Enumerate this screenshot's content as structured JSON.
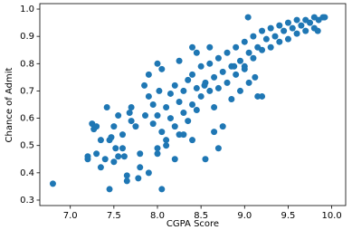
{
  "chart_data": {
    "type": "scatter",
    "xlabel": "CGPA Score",
    "ylabel": "Chance of Admit",
    "color": "#1f77b4",
    "xlim": [
      6.65,
      10.16
    ],
    "ylim": [
      0.28,
      1.02
    ],
    "xticks": [
      {
        "value": 7,
        "label": "7.0"
      },
      7.5,
      {
        "value": 8,
        "label": "8.0"
      },
      8.5,
      {
        "value": 9,
        "label": "9.0"
      },
      9.5,
      {
        "value": 10,
        "label": "10.0"
      }
    ],
    "yticks": [
      0.3,
      0.4,
      0.5,
      0.6,
      0.7,
      0.8,
      0.9,
      {
        "value": 1,
        "label": "1.0"
      }
    ],
    "x": [
      6.8,
      7.45,
      8.05,
      7.2,
      7.25,
      7.27,
      7.3,
      7.35,
      7.35,
      7.4,
      7.42,
      7.45,
      7.47,
      7.5,
      7.5,
      7.52,
      7.55,
      7.55,
      7.6,
      7.62,
      7.65,
      7.65,
      7.68,
      7.7,
      7.7,
      7.75,
      7.8,
      7.8,
      7.85,
      7.9,
      7.9,
      7.95,
      7.95,
      8.0,
      8.0,
      8.02,
      8.05,
      8.05,
      8.1,
      8.1,
      8.15,
      8.15,
      8.2,
      8.2,
      8.25,
      8.25,
      8.3,
      8.3,
      8.35,
      8.35,
      8.4,
      8.4,
      8.45,
      8.45,
      8.5,
      8.5,
      8.55,
      8.55,
      8.6,
      8.6,
      8.65,
      8.65,
      8.7,
      8.7,
      8.75,
      8.75,
      8.8,
      8.8,
      8.85,
      8.85,
      8.9,
      8.9,
      8.95,
      8.95,
      9.0,
      9.0,
      9.05,
      9.05,
      9.1,
      9.1,
      9.15,
      9.15,
      9.2,
      9.2,
      9.25,
      9.3,
      9.3,
      9.35,
      9.4,
      9.4,
      9.45,
      9.5,
      9.5,
      9.55,
      9.6,
      9.6,
      9.65,
      9.7,
      9.7,
      9.75,
      9.8,
      9.8,
      9.85,
      9.9,
      9.92,
      9.84,
      9.04,
      8.4,
      8.6,
      8.2,
      8.3,
      7.9,
      8.1,
      7.2,
      7.3,
      8.7,
      9.0,
      9.2,
      8.88,
      7.78,
      7.6,
      7.86,
      8.0,
      8.25,
      8.4,
      8.54,
      8.65,
      9.12,
      8.45,
      8.0
    ],
    "y": [
      0.36,
      0.34,
      0.34,
      0.46,
      0.58,
      0.56,
      0.47,
      0.52,
      0.42,
      0.45,
      0.64,
      0.52,
      0.53,
      0.57,
      0.44,
      0.49,
      0.46,
      0.61,
      0.54,
      0.46,
      0.39,
      0.37,
      0.62,
      0.64,
      0.59,
      0.57,
      0.47,
      0.42,
      0.72,
      0.76,
      0.68,
      0.65,
      0.58,
      0.61,
      0.49,
      0.7,
      0.78,
      0.55,
      0.64,
      0.52,
      0.69,
      0.6,
      0.72,
      0.57,
      0.66,
      0.54,
      0.7,
      0.62,
      0.74,
      0.59,
      0.76,
      0.65,
      0.71,
      0.63,
      0.79,
      0.68,
      0.73,
      0.45,
      0.8,
      0.7,
      0.75,
      0.64,
      0.82,
      0.71,
      0.77,
      0.57,
      0.84,
      0.73,
      0.79,
      0.67,
      0.86,
      0.76,
      0.81,
      0.7,
      0.88,
      0.79,
      0.84,
      0.73,
      0.9,
      0.82,
      0.86,
      0.68,
      0.92,
      0.85,
      0.89,
      0.93,
      0.86,
      0.9,
      0.94,
      0.88,
      0.92,
      0.95,
      0.89,
      0.93,
      0.96,
      0.91,
      0.94,
      0.96,
      0.92,
      0.95,
      0.97,
      0.93,
      0.96,
      0.97,
      0.97,
      0.92,
      0.97,
      0.86,
      0.86,
      0.45,
      0.54,
      0.4,
      0.5,
      0.45,
      0.57,
      0.49,
      0.78,
      0.68,
      0.79,
      0.38,
      0.49,
      0.61,
      0.47,
      0.81,
      0.52,
      0.72,
      0.55,
      0.75,
      0.84,
      0.8
    ]
  }
}
